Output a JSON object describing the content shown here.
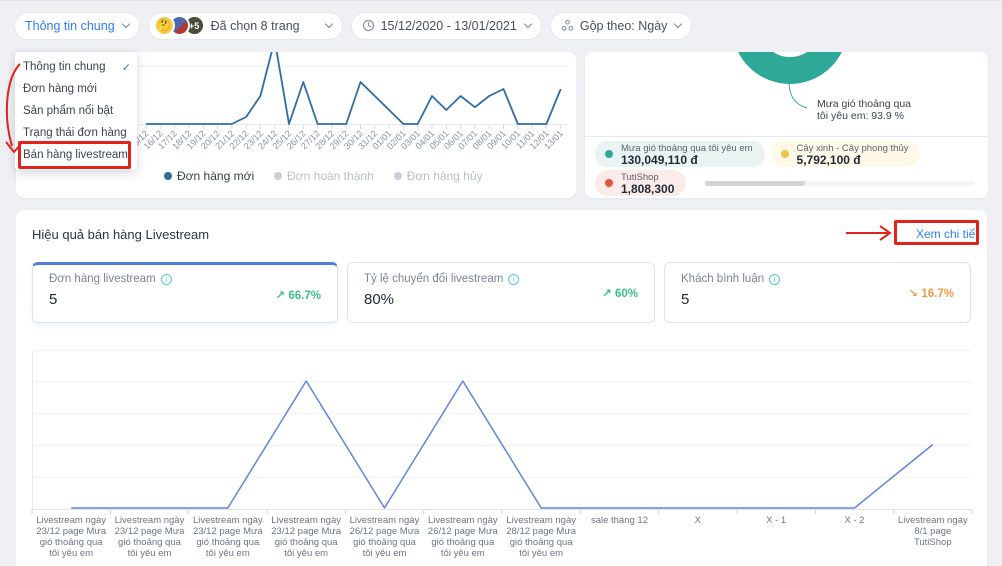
{
  "topbar": {
    "report_selector": {
      "label": "Thông tin chung"
    },
    "page_selector": {
      "label": "Đã chọn 8 trang",
      "more_badge": "+5"
    },
    "date_range": {
      "label": "15/12/2020 - 13/01/2021"
    },
    "group_by": {
      "label": "Gộp theo: Ngày"
    }
  },
  "report_menu": {
    "items": [
      {
        "label": "Thông tin chung",
        "selected": true
      },
      {
        "label": "Đơn hàng mới",
        "selected": false
      },
      {
        "label": "Sản phẩm nổi bật",
        "selected": false
      },
      {
        "label": "Trạng thái đơn hàng",
        "selected": false
      },
      {
        "label": "Bán hàng livestream",
        "selected": false,
        "highlighted": true
      }
    ]
  },
  "orders_card": {
    "legend": [
      {
        "label": "Đơn hàng mới",
        "active": true,
        "color": "#2e6da4"
      },
      {
        "label": "Đơn hoàn thành",
        "active": false,
        "color": "#c9cdd4"
      },
      {
        "label": "Đơn hàng hủy",
        "active": false,
        "color": "#c9cdd4"
      }
    ]
  },
  "revenue_card": {
    "annotation_line1": "Mưa gió thoảng qua",
    "annotation_line2": "tôi yêu em: 93.9 %",
    "chips": [
      {
        "name": "Mưa gió thoảng qua tôi yêu em",
        "value": "130,049,110 đ",
        "dot_color": "#2ea897",
        "bg_color": "#e9f4f2"
      },
      {
        "name": "Cây xinh - Cây phong thủy",
        "value": "5,792,100 đ",
        "dot_color": "#ecc64a",
        "bg_color": "#fdf8e7"
      },
      {
        "name": "TutiShop",
        "value": "1,808,300",
        "dot_color": "#e8503a",
        "bg_color": "#fcebe9"
      }
    ]
  },
  "livestream_section": {
    "title": "Hiệu quả bán hàng Livestream",
    "detail_link": "Xem chi tiết",
    "kpis": [
      {
        "label": "Đơn hàng livestream",
        "value": "5",
        "arrow": "↗",
        "trend": "66.7%",
        "direction": "up",
        "selected": true
      },
      {
        "label": "Tỷ lệ chuyển đổi livestream",
        "value": "80%",
        "arrow": "↗",
        "trend": "60%",
        "direction": "up",
        "selected": false
      },
      {
        "label": "Khách bình luận",
        "value": "5",
        "arrow": "↘",
        "trend": "16.7%",
        "direction": "down",
        "selected": false
      }
    ]
  },
  "colors": {
    "accent_blue": "#2f80ed",
    "orders_line": "#2e6da4",
    "livestream_line": "#6285d8",
    "teal": "#2ea897",
    "yellow": "#ecc64a",
    "red": "#e8503a",
    "trend_up_green": "#3cbd88",
    "trend_down_orange": "#f59b45",
    "annotation_red": "#e0231c"
  },
  "chart_data": [
    {
      "type": "line",
      "name": "orders-by-day",
      "x": [
        "15/12",
        "16/12",
        "17/12",
        "18/12",
        "19/12",
        "20/12",
        "21/12",
        "22/12",
        "23/12",
        "24/12",
        "25/12",
        "26/12",
        "27/12",
        "28/12",
        "29/12",
        "30/12",
        "31/12",
        "01/01",
        "02/01",
        "03/01",
        "04/01",
        "05/01",
        "06/01",
        "07/01",
        "08/01",
        "09/01",
        "10/01",
        "11/01",
        "12/01",
        "13/01"
      ],
      "series": [
        {
          "name": "Đơn hàng mới",
          "values": [
            0,
            0,
            0,
            0,
            0,
            0,
            0,
            0.5,
            2,
            6,
            0,
            3,
            0,
            0,
            0,
            3,
            2,
            1,
            0,
            0,
            2,
            1,
            2,
            1.2,
            2,
            2.5,
            0,
            0,
            0,
            2.5
          ]
        }
      ],
      "legend": [
        "Đơn hàng mới",
        "Đơn hoàn thành",
        "Đơn hàng hủy"
      ],
      "legend_position": "bottom",
      "grid": true,
      "note_peak_clipped": "24/12"
    },
    {
      "type": "pie",
      "name": "revenue-by-page",
      "slices": [
        {
          "label": "Mưa gió thoảng qua tôi yêu em",
          "percent": 93.9,
          "value": "130,049,110 đ",
          "color": "#2ea897"
        },
        {
          "label": "Cây xinh - Cây phong thủy",
          "value": "5,792,100 đ",
          "color": "#ecc64a"
        },
        {
          "label": "TutiShop",
          "value": "1,808,300",
          "color": "#e8503a"
        }
      ],
      "annotation": "Mưa gió thoảng qua tôi yêu em: 93.9 %"
    },
    {
      "type": "line",
      "name": "livestream-orders",
      "categories": [
        "Livestream ngày 23/12 page Mưa gió thoảng qua tôi yêu em",
        "Livestream ngày 23/12 page Mưa gió thoảng qua tôi yêu em",
        "Livestream ngày 23/12 page Mưa gió thoảng qua tôi yêu em",
        "Livestream ngày 23/12 page Mưa gió thoảng qua tôi yêu em",
        "Livestream ngày 26/12 page Mưa gió thoảng qua tôi yêu em",
        "Livestream ngày 26/12 page Mưa gió thoảng qua tôi yêu em",
        "Livestream ngày 28/12 page Mưa gió thoảng qua tôi yêu em",
        "sale tháng 12",
        "X",
        "X - 1",
        "X - 2",
        "Livestream ngày 8/1 page TutiShop"
      ],
      "values": [
        0,
        0,
        0,
        2,
        0,
        2,
        0,
        0,
        0,
        0,
        0,
        1
      ],
      "ylim": [
        0,
        2
      ],
      "grid": true
    }
  ]
}
